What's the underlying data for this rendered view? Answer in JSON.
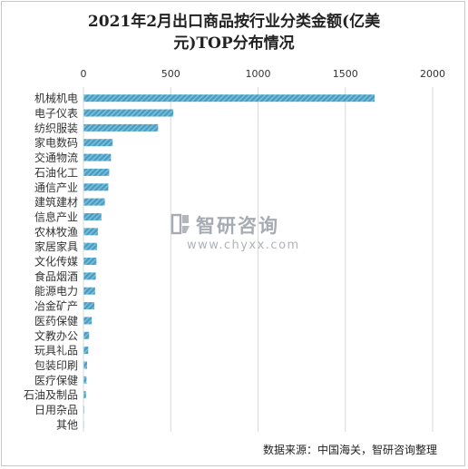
{
  "title_line1": "2021年2月出口商品按行业分类金额(亿美",
  "title_line2": "元)TOP分布情况",
  "watermark": {
    "brand": "智研咨询",
    "url": "www.chyxx.com"
  },
  "source": "数据来源：中国海关，智研咨询整理",
  "colors": {
    "bar": "#4a9ec4",
    "bar_stripe": "#7cc0dc",
    "grid": "#d9d9d9",
    "axis_text": "#333333"
  },
  "chart_data": {
    "type": "bar",
    "orientation": "horizontal",
    "categories": [
      "机械机电",
      "电子仪表",
      "纺织服装",
      "家电数码",
      "交通物流",
      "石油化工",
      "通信产业",
      "建筑建材",
      "信息产业",
      "农林牧渔",
      "家居家具",
      "文化传媒",
      "食品烟酒",
      "能源电力",
      "冶金矿产",
      "医药保健",
      "文教办公",
      "玩具礼品",
      "包装印刷",
      "医疗保健",
      "石油及制品",
      "日用杂品",
      "其他"
    ],
    "values": [
      1665,
      512,
      425,
      165,
      155,
      145,
      140,
      120,
      100,
      80,
      75,
      72,
      68,
      64,
      60,
      45,
      30,
      25,
      18,
      15,
      12,
      2,
      1
    ],
    "xlim": [
      0,
      2000
    ],
    "xticks": [
      0,
      500,
      1000,
      1500,
      2000
    ],
    "xaxis_position": "top",
    "grid": true,
    "legend": "none",
    "title": "2021年2月出口商品按行业分类金额(亿美元)TOP分布情况"
  }
}
